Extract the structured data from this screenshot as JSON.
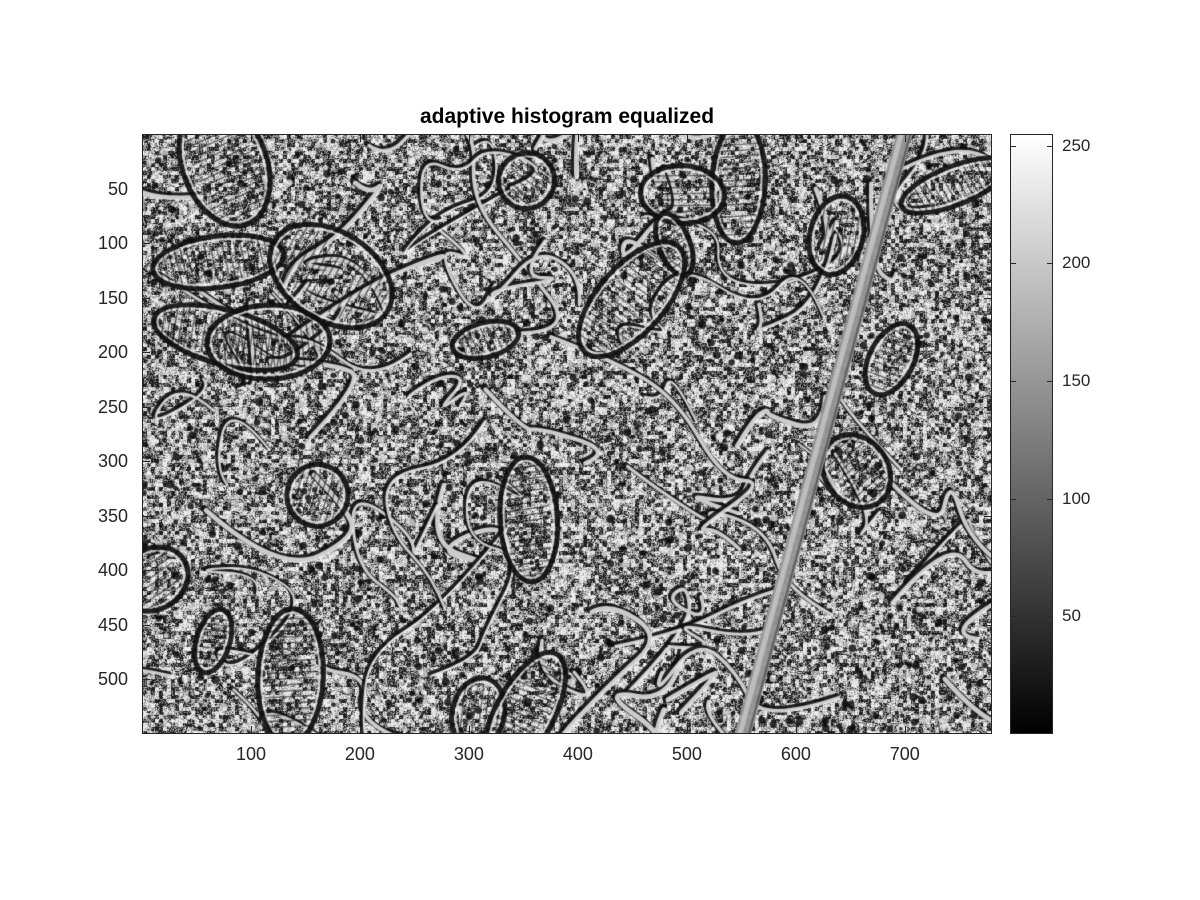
{
  "figure": {
    "title": "adaptive histogram equalized",
    "colormap": "gray",
    "image_size": {
      "width": 780,
      "height": 550
    },
    "y_ticks": [
      50,
      100,
      150,
      200,
      250,
      300,
      350,
      400,
      450,
      500
    ],
    "y_tick_labels": [
      "50",
      "100",
      "150",
      "200",
      "250",
      "300",
      "350",
      "400",
      "450",
      "500"
    ],
    "x_ticks": [
      100,
      200,
      300,
      400,
      500,
      600,
      700
    ],
    "x_tick_labels": [
      "100",
      "200",
      "300",
      "400",
      "500",
      "600",
      "700"
    ],
    "colorbar": {
      "range": [
        0,
        255
      ],
      "ticks": [
        50,
        100,
        150,
        200,
        250
      ],
      "tick_labels": [
        "50",
        "100",
        "150",
        "200",
        "250"
      ]
    },
    "axes_color": "#262626"
  }
}
